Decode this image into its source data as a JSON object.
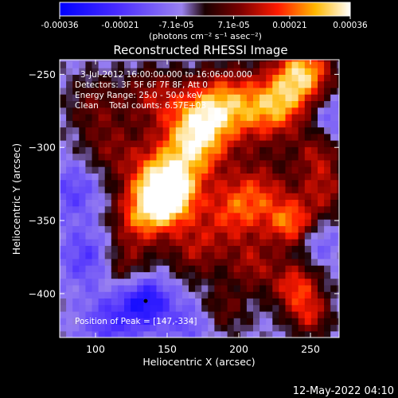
{
  "colorbar": {
    "ticks": [
      "-0.00036",
      "-0.00021",
      "-7.1e-05",
      "7.1e-05",
      "0.00021",
      "0.00036"
    ],
    "tick_values": [
      -0.00036,
      -0.00021,
      -7.1e-05,
      7.1e-05,
      0.00021,
      0.00036
    ],
    "range": [
      -0.00036,
      0.00036
    ],
    "units_label": "(photons cm⁻² s⁻¹ asec⁻²)"
  },
  "footer": {
    "timestamp": "12-May-2022 04:10"
  },
  "annotations": {
    "time_range": "3-Jul-2012 16:00:00.000 to 16:06:00.000",
    "detectors": "Detectors: 3F 5F 6F 7F 8F, Att 0",
    "energy_range": "Energy Range: 25.0 - 50.0 keV",
    "method": "Clean    Total counts: 6.57E+03",
    "peak": "Position of Peak = [147,-334]"
  },
  "chart_data": {
    "type": "heatmap",
    "title": "Reconstructed RHESSI Image",
    "xlabel": "Heliocentric X (arcsec)",
    "ylabel": "Heliocentric Y (arcsec)",
    "xlim": [
      75,
      270
    ],
    "ylim": [
      -430,
      -240
    ],
    "xticks": [
      100,
      150,
      200,
      250
    ],
    "yticks": [
      -250,
      -300,
      -350,
      -400
    ],
    "colormap": "rhessi-bluered",
    "peak_position": [
      147,
      -334
    ],
    "sources": [
      {
        "x": 150,
        "y": -334,
        "value": 0.00036,
        "width": 14
      },
      {
        "x": 145,
        "y": -320,
        "value": 0.00024,
        "width": 18
      },
      {
        "x": 130,
        "y": -350,
        "value": 0.0002,
        "width": 14
      },
      {
        "x": 170,
        "y": -300,
        "value": 0.00024,
        "width": 16
      },
      {
        "x": 172,
        "y": -280,
        "value": 0.00022,
        "width": 16
      },
      {
        "x": 190,
        "y": -268,
        "value": 0.0002,
        "width": 16
      },
      {
        "x": 215,
        "y": -275,
        "value": 0.00018,
        "width": 18
      },
      {
        "x": 245,
        "y": -248,
        "value": 0.00034,
        "width": 14
      },
      {
        "x": 230,
        "y": -270,
        "value": 0.00018,
        "width": 14
      },
      {
        "x": 195,
        "y": -345,
        "value": 0.0002,
        "width": 16
      },
      {
        "x": 215,
        "y": -330,
        "value": 0.00018,
        "width": 16
      },
      {
        "x": 237,
        "y": -352,
        "value": 0.00026,
        "width": 12
      },
      {
        "x": 255,
        "y": -305,
        "value": 0.00016,
        "width": 12
      },
      {
        "x": 260,
        "y": -330,
        "value": 0.00016,
        "width": 12
      },
      {
        "x": 170,
        "y": -370,
        "value": 0.00016,
        "width": 14
      },
      {
        "x": 210,
        "y": -380,
        "value": 0.00016,
        "width": 12
      },
      {
        "x": 240,
        "y": -395,
        "value": 0.00024,
        "width": 12
      },
      {
        "x": 250,
        "y": -415,
        "value": 0.00018,
        "width": 10
      },
      {
        "x": 120,
        "y": -380,
        "value": 0.00014,
        "width": 12
      },
      {
        "x": 110,
        "y": -300,
        "value": 0.00012,
        "width": 14
      },
      {
        "x": 100,
        "y": -270,
        "value": 0.00012,
        "width": 14
      },
      {
        "x": 140,
        "y": -265,
        "value": 0.00016,
        "width": 14
      },
      {
        "x": 190,
        "y": -410,
        "value": 0.00012,
        "width": 12
      },
      {
        "x": 85,
        "y": -330,
        "value": -0.00012,
        "width": 14
      },
      {
        "x": 95,
        "y": -375,
        "value": -0.00014,
        "width": 14
      },
      {
        "x": 135,
        "y": -405,
        "value": -0.00024,
        "width": 12
      },
      {
        "x": 110,
        "y": -420,
        "value": -0.00014,
        "width": 14
      },
      {
        "x": 165,
        "y": -420,
        "value": -0.0001,
        "width": 12
      },
      {
        "x": 265,
        "y": -280,
        "value": -0.0001,
        "width": 10
      },
      {
        "x": 255,
        "y": -365,
        "value": -0.0001,
        "width": 10
      }
    ]
  }
}
